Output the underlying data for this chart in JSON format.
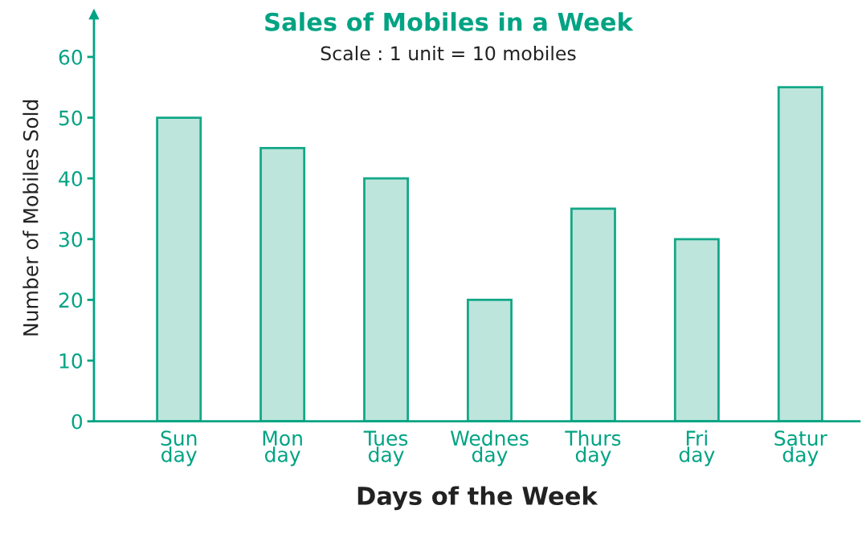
{
  "chart_data": {
    "type": "bar",
    "title": "Sales of Mobiles in a Week",
    "subtitle": "Scale : 1 unit = 10 mobiles",
    "xlabel": "Days of the Week",
    "ylabel": "Number of Mobiles Sold",
    "categories": [
      "Sun\nday",
      "Mon\nday",
      "Tues\nday",
      "Wednes\nday",
      "Thurs\nday",
      "Fri\nday",
      "Satur\nday"
    ],
    "values": [
      50,
      45,
      40,
      20,
      35,
      30,
      55
    ],
    "color": "#bde5dc",
    "ylim": [
      0,
      67
    ],
    "yticks": [
      0,
      10,
      20,
      30,
      40,
      50,
      60
    ],
    "grid": false
  }
}
